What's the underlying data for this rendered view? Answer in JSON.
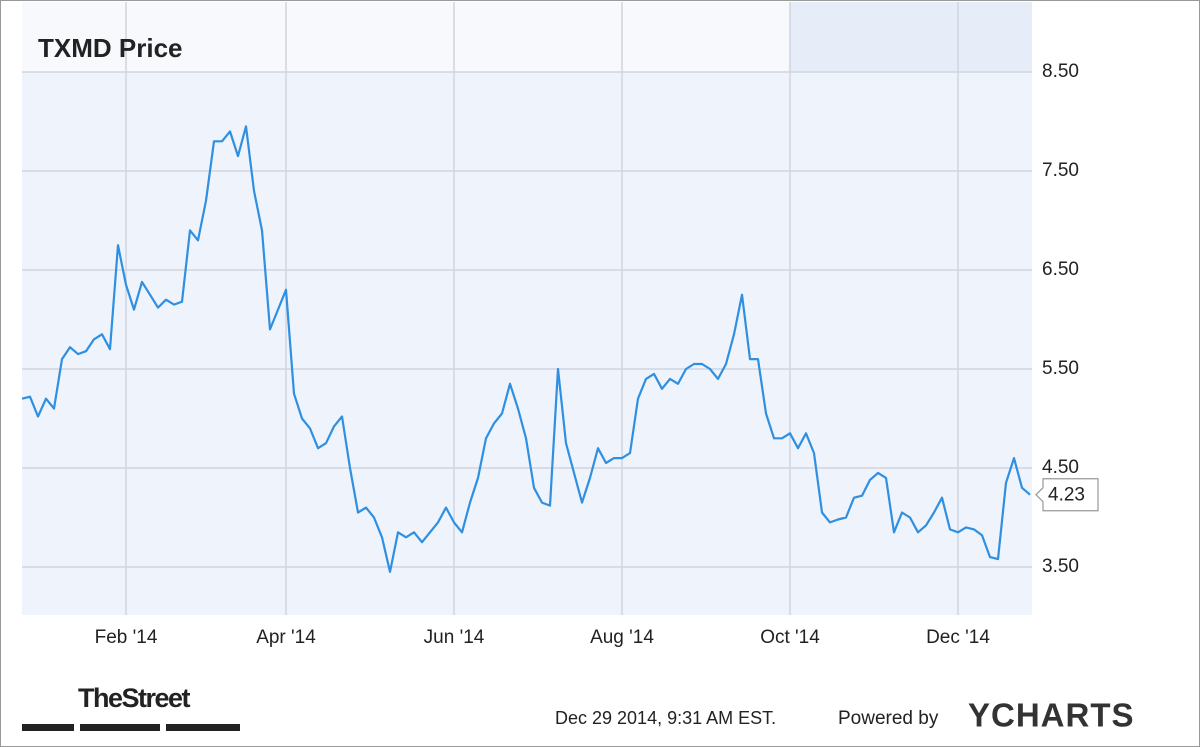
{
  "chart_data": {
    "type": "line",
    "title": "TXMD Price",
    "categories": [
      null,
      null,
      null,
      null,
      null,
      null,
      null,
      null,
      null,
      null,
      null,
      null,
      null,
      "Feb '14",
      null,
      null,
      null,
      null,
      null,
      null,
      null,
      null,
      null,
      null,
      null,
      null,
      null,
      null,
      null,
      null,
      null,
      null,
      null,
      "Apr '14",
      null,
      null,
      null,
      null,
      null,
      null,
      null,
      null,
      null,
      null,
      null,
      null,
      null,
      null,
      null,
      null,
      null,
      null,
      null,
      null,
      "Jun '14",
      null,
      null,
      null,
      null,
      null,
      null,
      null,
      null,
      null,
      null,
      null,
      null,
      null,
      null,
      null,
      null,
      null,
      null,
      null,
      null,
      "Aug '14",
      null,
      null,
      null,
      null,
      null,
      null,
      null,
      null,
      null,
      null,
      null,
      null,
      null,
      null,
      null,
      null,
      null,
      null,
      null,
      null,
      "Oct '14",
      null,
      null,
      null,
      null,
      null,
      null,
      null,
      null,
      null,
      null,
      null,
      null,
      null,
      null,
      null,
      null,
      null,
      null,
      null,
      null,
      "Dec '14",
      null,
      null,
      null,
      null,
      null,
      null,
      null,
      null,
      null
    ],
    "values": [
      5.2,
      5.22,
      5.02,
      5.2,
      5.1,
      5.6,
      5.72,
      5.65,
      5.68,
      5.8,
      5.85,
      5.7,
      6.75,
      6.35,
      6.1,
      6.38,
      6.25,
      6.12,
      6.2,
      6.15,
      6.18,
      6.9,
      6.8,
      7.2,
      7.8,
      7.8,
      7.9,
      7.65,
      7.95,
      7.3,
      6.9,
      5.9,
      6.1,
      6.3,
      5.25,
      5.0,
      4.9,
      4.7,
      4.75,
      4.92,
      5.02,
      4.5,
      4.05,
      4.1,
      4.0,
      3.8,
      3.45,
      3.85,
      3.8,
      3.85,
      3.75,
      3.85,
      3.95,
      4.1,
      3.95,
      3.85,
      4.15,
      4.4,
      4.8,
      4.95,
      5.05,
      5.35,
      5.1,
      4.8,
      4.3,
      4.15,
      4.12,
      5.5,
      4.75,
      4.45,
      4.15,
      4.4,
      4.7,
      4.55,
      4.6,
      4.6,
      4.65,
      5.2,
      5.4,
      5.45,
      5.3,
      5.4,
      5.35,
      5.5,
      5.55,
      5.55,
      5.5,
      5.4,
      5.55,
      5.85,
      6.25,
      5.6,
      5.6,
      5.05,
      4.8,
      4.8,
      4.85,
      4.7,
      4.85,
      4.65,
      4.05,
      3.95,
      3.98,
      4.0,
      4.2,
      4.22,
      4.38,
      4.45,
      4.4,
      3.85,
      4.05,
      4.0,
      3.85,
      3.92,
      4.05,
      4.2,
      3.88,
      3.85,
      3.9,
      3.88,
      3.82,
      3.6,
      3.58,
      4.35,
      4.6,
      4.3,
      4.23
    ],
    "color": "#2f8fe0",
    "ylim": [
      3.015,
      9.207
    ],
    "yticks": [
      {
        "value": 3.5,
        "label": "3.50"
      },
      {
        "value": 4.5,
        "label": "4.50"
      },
      {
        "value": 5.5,
        "label": "5.50"
      },
      {
        "value": 6.5,
        "label": "6.50"
      },
      {
        "value": 7.5,
        "label": "7.50"
      },
      {
        "value": 8.5,
        "label": "8.50"
      }
    ],
    "grid": true,
    "publisher": "TheStreet",
    "timestamp": "Dec 29 2014, 9:31 AM EST.",
    "powered_by": "Powered by",
    "provider": "YCHARTS"
  }
}
